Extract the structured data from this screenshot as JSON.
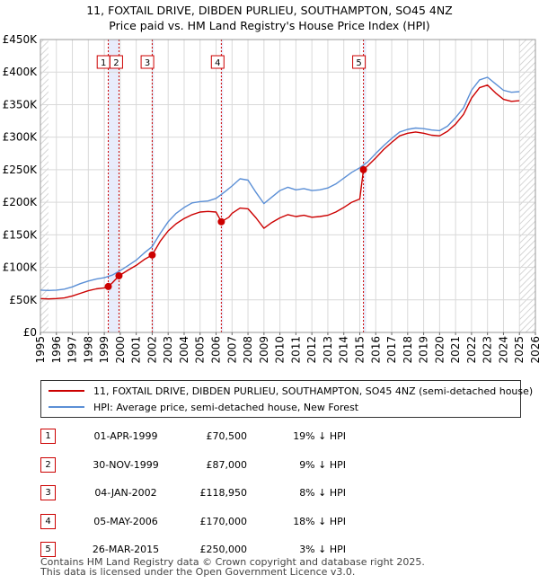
{
  "chart_data": {
    "type": "line",
    "title": "11, FOXTAIL DRIVE, DIBDEN PURLIEU, SOUTHAMPTON, SO45 4NZ",
    "subtitle": "Price paid vs. HM Land Registry's House Price Index (HPI)",
    "xlim": [
      1995,
      2026
    ],
    "ylim": [
      0,
      450000
    ],
    "x_ticks": [
      "1995",
      "1996",
      "1997",
      "1998",
      "1999",
      "2000",
      "2001",
      "2002",
      "2003",
      "2004",
      "2005",
      "2006",
      "2007",
      "2008",
      "2009",
      "2010",
      "2011",
      "2012",
      "2013",
      "2014",
      "2015",
      "2016",
      "2017",
      "2018",
      "2019",
      "2020",
      "2021",
      "2022",
      "2023",
      "2024",
      "2025",
      "2026"
    ],
    "y_ticks": [
      {
        "value": 0,
        "label": "£0"
      },
      {
        "value": 50000,
        "label": "£50K"
      },
      {
        "value": 100000,
        "label": "£100K"
      },
      {
        "value": 150000,
        "label": "£150K"
      },
      {
        "value": 200000,
        "label": "£200K"
      },
      {
        "value": 250000,
        "label": "£250K"
      },
      {
        "value": 300000,
        "label": "£300K"
      },
      {
        "value": 350000,
        "label": "£350K"
      },
      {
        "value": 400000,
        "label": "£400K"
      },
      {
        "value": 450000,
        "label": "£450K"
      }
    ],
    "hatched_ranges": [
      [
        1995,
        1995.5
      ],
      [
        2025.0,
        2026
      ]
    ],
    "shaded_spans": [
      [
        1999.25,
        1999.92
      ],
      [
        2002.0,
        2002.08
      ],
      [
        2006.33,
        2006.42
      ],
      [
        2015.23,
        2015.4
      ]
    ],
    "series": [
      {
        "name": "HPI: Average price, semi-detached house, New Forest",
        "color": "#5b8fd6",
        "points": [
          [
            1995.0,
            65000
          ],
          [
            1995.5,
            64500
          ],
          [
            1996.0,
            65000
          ],
          [
            1996.5,
            66500
          ],
          [
            1997.0,
            70000
          ],
          [
            1997.5,
            75000
          ],
          [
            1998.0,
            79000
          ],
          [
            1998.5,
            82000
          ],
          [
            1999.0,
            84000
          ],
          [
            1999.5,
            88000
          ],
          [
            2000.0,
            95000
          ],
          [
            2000.5,
            103000
          ],
          [
            2001.0,
            111000
          ],
          [
            2001.5,
            122000
          ],
          [
            2002.0,
            132000
          ],
          [
            2002.5,
            152000
          ],
          [
            2003.0,
            170000
          ],
          [
            2003.5,
            183000
          ],
          [
            2004.0,
            192000
          ],
          [
            2004.5,
            199000
          ],
          [
            2005.0,
            201000
          ],
          [
            2005.5,
            202000
          ],
          [
            2006.0,
            206000
          ],
          [
            2006.5,
            215000
          ],
          [
            2007.0,
            225000
          ],
          [
            2007.5,
            236000
          ],
          [
            2008.0,
            234000
          ],
          [
            2008.5,
            215000
          ],
          [
            2009.0,
            198000
          ],
          [
            2009.5,
            208000
          ],
          [
            2010.0,
            218000
          ],
          [
            2010.5,
            223000
          ],
          [
            2011.0,
            219000
          ],
          [
            2011.5,
            221000
          ],
          [
            2012.0,
            218000
          ],
          [
            2012.5,
            219000
          ],
          [
            2013.0,
            222000
          ],
          [
            2013.5,
            228000
          ],
          [
            2014.0,
            237000
          ],
          [
            2014.5,
            246000
          ],
          [
            2015.0,
            253000
          ],
          [
            2015.5,
            262000
          ],
          [
            2016.0,
            275000
          ],
          [
            2016.5,
            287000
          ],
          [
            2017.0,
            298000
          ],
          [
            2017.5,
            308000
          ],
          [
            2018.0,
            312000
          ],
          [
            2018.5,
            314000
          ],
          [
            2019.0,
            313000
          ],
          [
            2019.5,
            311000
          ],
          [
            2020.0,
            310000
          ],
          [
            2020.5,
            317000
          ],
          [
            2021.0,
            330000
          ],
          [
            2021.5,
            345000
          ],
          [
            2022.0,
            372000
          ],
          [
            2022.5,
            388000
          ],
          [
            2023.0,
            392000
          ],
          [
            2023.5,
            382000
          ],
          [
            2024.0,
            372000
          ],
          [
            2024.5,
            369000
          ],
          [
            2025.0,
            370000
          ]
        ]
      },
      {
        "name": "11, FOXTAIL DRIVE, DIBDEN PURLIEU, SOUTHAMPTON, SO45 4NZ (semi-detached house)",
        "color": "#cc0000",
        "points": [
          [
            1995.0,
            52000
          ],
          [
            1995.5,
            51500
          ],
          [
            1996.0,
            52000
          ],
          [
            1996.5,
            53000
          ],
          [
            1997.0,
            56000
          ],
          [
            1997.5,
            60000
          ],
          [
            1998.0,
            64000
          ],
          [
            1998.5,
            67000
          ],
          [
            1999.0,
            68500
          ],
          [
            1999.25,
            70500
          ],
          [
            1999.5,
            76000
          ],
          [
            1999.92,
            87000
          ],
          [
            2000.5,
            96000
          ],
          [
            2001.0,
            103000
          ],
          [
            2001.5,
            112000
          ],
          [
            2002.0,
            118950
          ],
          [
            2002.5,
            140000
          ],
          [
            2003.0,
            156000
          ],
          [
            2003.5,
            167000
          ],
          [
            2004.0,
            175000
          ],
          [
            2004.5,
            181000
          ],
          [
            2005.0,
            185000
          ],
          [
            2005.5,
            186000
          ],
          [
            2006.0,
            185000
          ],
          [
            2006.33,
            170000
          ],
          [
            2006.8,
            177000
          ],
          [
            2007.0,
            183000
          ],
          [
            2007.5,
            191000
          ],
          [
            2008.0,
            190000
          ],
          [
            2008.5,
            176000
          ],
          [
            2009.0,
            160000
          ],
          [
            2009.5,
            169000
          ],
          [
            2010.0,
            176000
          ],
          [
            2010.5,
            181000
          ],
          [
            2011.0,
            178000
          ],
          [
            2011.5,
            180000
          ],
          [
            2012.0,
            177000
          ],
          [
            2012.5,
            178000
          ],
          [
            2013.0,
            180000
          ],
          [
            2013.5,
            185000
          ],
          [
            2014.0,
            192000
          ],
          [
            2014.5,
            200000
          ],
          [
            2015.0,
            205000
          ],
          [
            2015.23,
            250000
          ],
          [
            2015.5,
            256000
          ],
          [
            2016.0,
            268000
          ],
          [
            2016.5,
            281000
          ],
          [
            2017.0,
            292000
          ],
          [
            2017.5,
            302000
          ],
          [
            2018.0,
            306000
          ],
          [
            2018.5,
            308000
          ],
          [
            2019.0,
            306000
          ],
          [
            2019.5,
            303000
          ],
          [
            2020.0,
            302000
          ],
          [
            2020.5,
            309000
          ],
          [
            2021.0,
            320000
          ],
          [
            2021.5,
            335000
          ],
          [
            2022.0,
            360000
          ],
          [
            2022.5,
            376000
          ],
          [
            2023.0,
            380000
          ],
          [
            2023.5,
            368000
          ],
          [
            2024.0,
            358000
          ],
          [
            2024.5,
            355000
          ],
          [
            2025.0,
            356000
          ]
        ]
      }
    ],
    "sales": [
      {
        "label": "1",
        "x": 1999.25,
        "y": 70500
      },
      {
        "label": "2",
        "x": 1999.92,
        "y": 87000
      },
      {
        "label": "3",
        "x": 2002.0,
        "y": 118950
      },
      {
        "label": "4",
        "x": 2006.33,
        "y": 170000
      },
      {
        "label": "5",
        "x": 2015.23,
        "y": 250000
      }
    ],
    "marker_labels": [
      {
        "label": "1",
        "x": 1998.95
      },
      {
        "label": "2",
        "x": 1999.75
      },
      {
        "label": "3",
        "x": 2001.7
      },
      {
        "label": "4",
        "x": 2006.1
      },
      {
        "label": "5",
        "x": 2014.95
      }
    ]
  },
  "legend": {
    "property": "11, FOXTAIL DRIVE, DIBDEN PURLIEU, SOUTHAMPTON, SO45 4NZ (semi-detached house)",
    "hpi": "HPI: Average price, semi-detached house, New Forest"
  },
  "transactions": [
    {
      "num": "1",
      "date": "01-APR-1999",
      "price": "£70,500",
      "hpi": "19% ↓ HPI"
    },
    {
      "num": "2",
      "date": "30-NOV-1999",
      "price": "£87,000",
      "hpi": "9% ↓ HPI"
    },
    {
      "num": "3",
      "date": "04-JAN-2002",
      "price": "£118,950",
      "hpi": "8% ↓ HPI"
    },
    {
      "num": "4",
      "date": "05-MAY-2006",
      "price": "£170,000",
      "hpi": "18% ↓ HPI"
    },
    {
      "num": "5",
      "date": "26-MAR-2015",
      "price": "£250,000",
      "hpi": "3% ↓ HPI"
    }
  ],
  "footer": {
    "line1": "Contains HM Land Registry data © Crown copyright and database right 2025.",
    "line2": "This data is licensed under the Open Government Licence v3.0."
  },
  "colors": {
    "property": "#cc0000",
    "hpi": "#5b8fd6",
    "shade": "#e8ecfb",
    "grid": "#d9d9d9"
  }
}
